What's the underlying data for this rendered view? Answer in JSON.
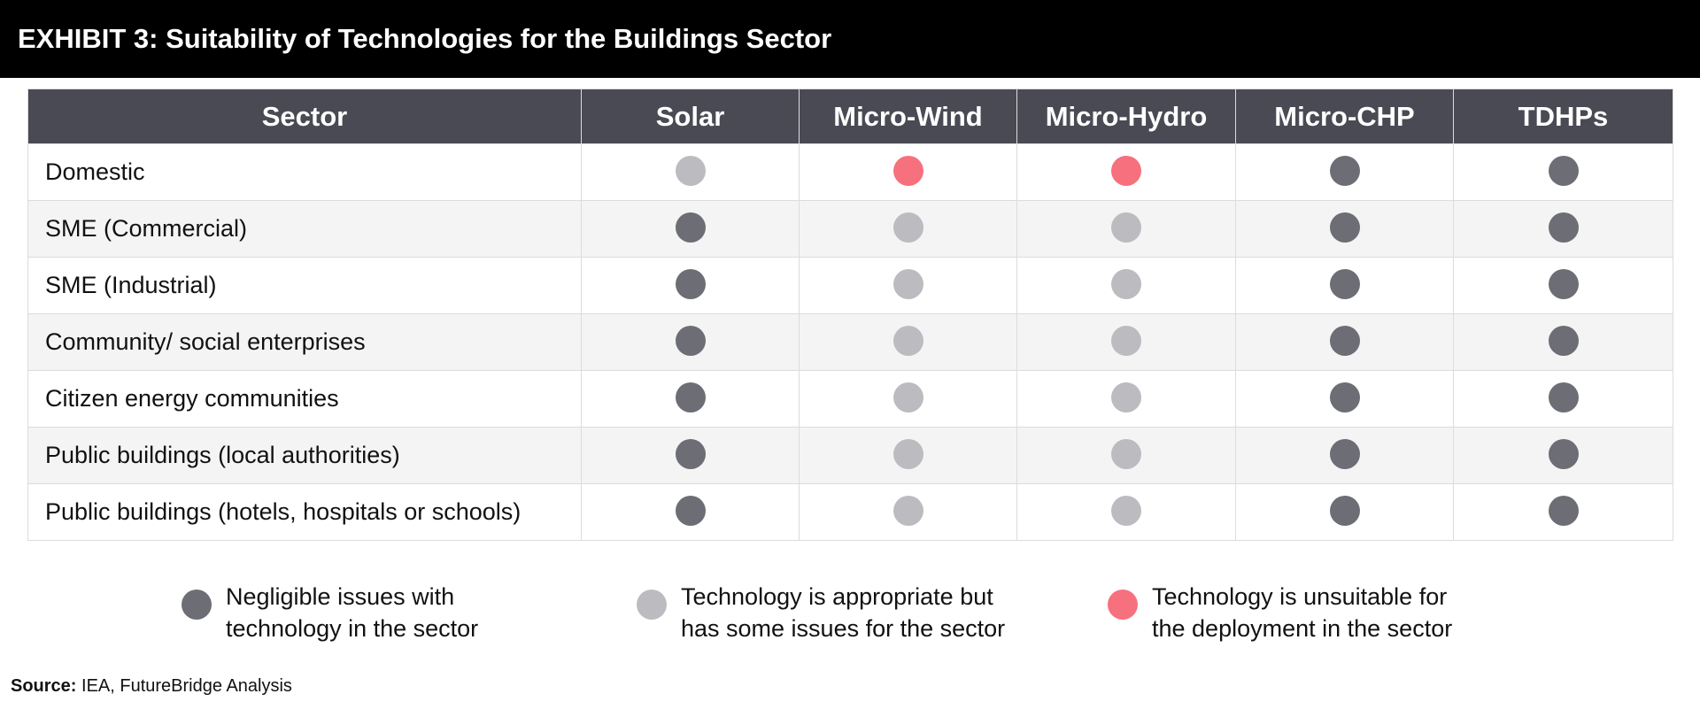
{
  "header": {
    "title": "EXHIBIT 3: Suitability of Technologies for the Buildings Sector"
  },
  "table": {
    "columns": [
      "Sector",
      "Solar",
      "Micro-Wind",
      "Micro-Hydro",
      "Micro-CHP",
      "TDHPs"
    ],
    "rows": [
      {
        "sector": "Domestic",
        "ratings": [
          "mid",
          "high",
          "high",
          "low",
          "low"
        ]
      },
      {
        "sector": "SME (Commercial)",
        "ratings": [
          "low",
          "mid",
          "mid",
          "low",
          "low"
        ]
      },
      {
        "sector": "SME (Industrial)",
        "ratings": [
          "low",
          "mid",
          "mid",
          "low",
          "low"
        ]
      },
      {
        "sector": "Community/ social enterprises",
        "ratings": [
          "low",
          "mid",
          "mid",
          "low",
          "low"
        ]
      },
      {
        "sector": "Citizen energy communities",
        "ratings": [
          "low",
          "mid",
          "mid",
          "low",
          "low"
        ]
      },
      {
        "sector": "Public buildings (local authorities)",
        "ratings": [
          "low",
          "mid",
          "mid",
          "low",
          "low"
        ]
      },
      {
        "sector": "Public buildings (hotels, hospitals or schools)",
        "ratings": [
          "low",
          "mid",
          "mid",
          "low",
          "low"
        ]
      }
    ]
  },
  "legend": [
    {
      "key": "low",
      "color": "#6d6d75",
      "line1": "Negligible issues with",
      "line2": "technology in the sector"
    },
    {
      "key": "mid",
      "color": "#bcbcc0",
      "line1": "Technology is appropriate but",
      "line2": "has some issues for the sector"
    },
    {
      "key": "high",
      "color": "#f7707e",
      "line1": "Technology is unsuitable for",
      "line2": "the deployment in the sector"
    }
  ],
  "source": {
    "label": "Source:",
    "text": "IEA, FutureBridge Analysis"
  }
}
